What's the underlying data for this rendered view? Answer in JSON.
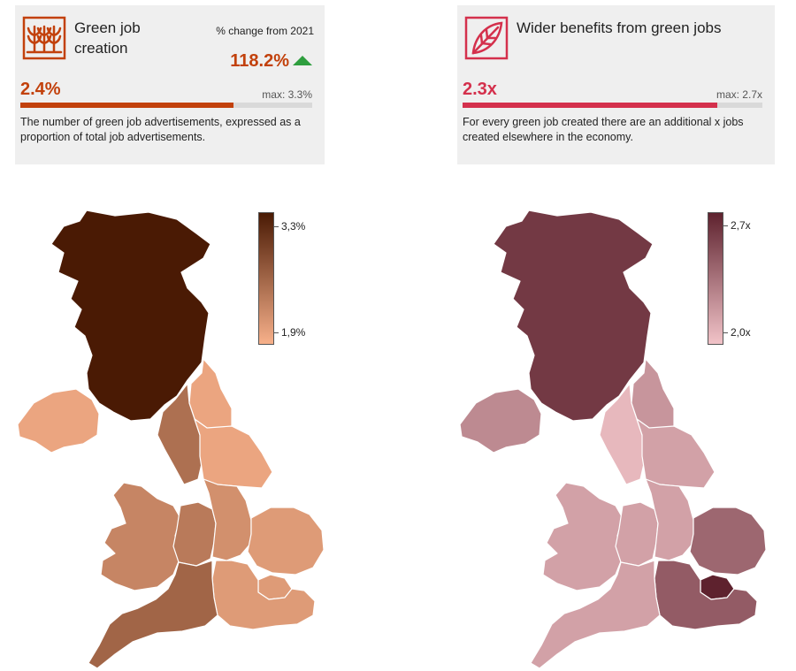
{
  "colors": {
    "accent_orange": "#c2410c",
    "accent_red": "#d4304c",
    "up_arrow": "#2e9e3e",
    "scale_left": [
      "#f7b08a",
      "#4a1a04"
    ],
    "scale_right": [
      "#f1c3c8",
      "#5e222e"
    ]
  },
  "cards": [
    {
      "icon": "sprouting-crops-icon",
      "title_line1": "Green job",
      "title_line2": "creation",
      "change_label": "% change from 2021",
      "change_value": "118.2%",
      "value": "2.4%",
      "max_label": "max: 3.3%",
      "progress": 0.73,
      "description": "The number of green job advertisements, expressed as a proportion of total job advertisements."
    },
    {
      "icon": "leaf-icon",
      "title": "Wider benefits from green jobs",
      "value": "2.3x",
      "max_label": "max: 2.7x",
      "progress": 0.85,
      "description": "For every green job created there are an additional x jobs created elsewhere in the economy."
    }
  ],
  "chart_data": [
    {
      "type": "heatmap",
      "title": "",
      "legend": {
        "max_label": "3,3%",
        "min_label": "1,9%",
        "range": [
          1.9,
          3.3
        ]
      },
      "regions": [
        {
          "name": "Scotland",
          "value": 3.3
        },
        {
          "name": "Northern Ireland",
          "value": 2.0
        },
        {
          "name": "North East",
          "value": 2.0
        },
        {
          "name": "North West",
          "value": 2.5
        },
        {
          "name": "Yorkshire and The Humber",
          "value": 2.0
        },
        {
          "name": "Wales",
          "value": 2.3
        },
        {
          "name": "West Midlands",
          "value": 2.4
        },
        {
          "name": "East Midlands",
          "value": 2.2
        },
        {
          "name": "East of England",
          "value": 2.1
        },
        {
          "name": "London",
          "value": 2.1
        },
        {
          "name": "South East",
          "value": 2.1
        },
        {
          "name": "South West",
          "value": 2.6
        }
      ]
    },
    {
      "type": "heatmap",
      "title": "",
      "legend": {
        "max_label": "2,7x",
        "min_label": "2,0x",
        "range": [
          2.0,
          2.7
        ]
      },
      "regions": [
        {
          "name": "Scotland",
          "value": 2.6
        },
        {
          "name": "Northern Ireland",
          "value": 2.25
        },
        {
          "name": "North East",
          "value": 2.2
        },
        {
          "name": "North West",
          "value": 2.05
        },
        {
          "name": "Yorkshire and The Humber",
          "value": 2.15
        },
        {
          "name": "Wales",
          "value": 2.15
        },
        {
          "name": "West Midlands",
          "value": 2.15
        },
        {
          "name": "East Midlands",
          "value": 2.15
        },
        {
          "name": "East of England",
          "value": 2.4
        },
        {
          "name": "London",
          "value": 2.7
        },
        {
          "name": "South East",
          "value": 2.45
        },
        {
          "name": "South West",
          "value": 2.15
        }
      ]
    }
  ]
}
